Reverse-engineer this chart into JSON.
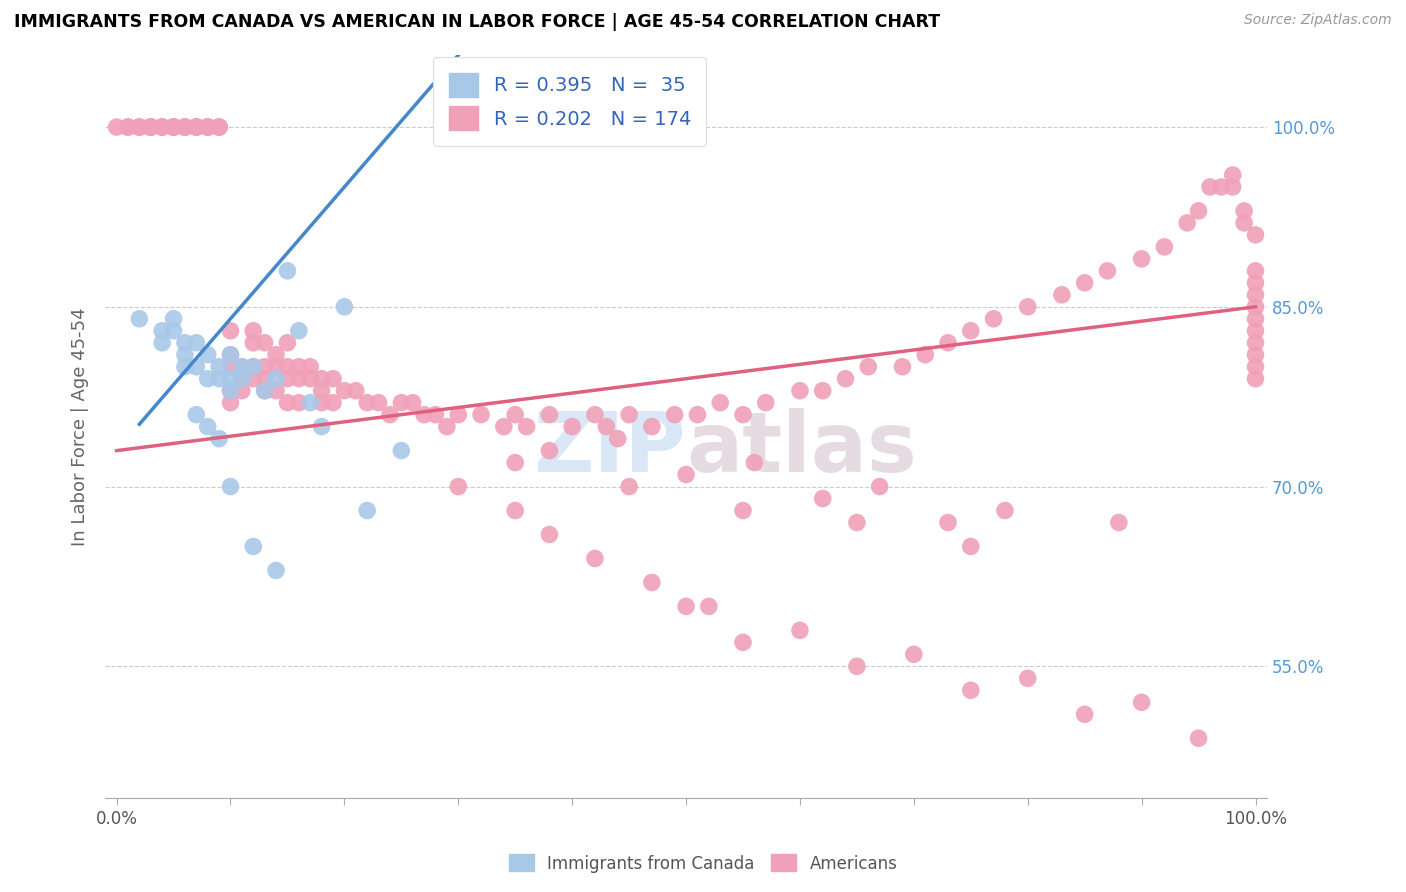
{
  "title": "IMMIGRANTS FROM CANADA VS AMERICAN IN LABOR FORCE | AGE 45-54 CORRELATION CHART",
  "source": "Source: ZipAtlas.com",
  "ylabel": "In Labor Force | Age 45-54",
  "blue_color": "#a8c8e8",
  "pink_color": "#f0a0b8",
  "line_blue": "#4488cc",
  "line_pink": "#e06080",
  "ytick_values": [
    0.55,
    0.7,
    0.85,
    1.0
  ],
  "ytick_labels": [
    "55.0%",
    "70.0%",
    "85.0%",
    "100.0%"
  ],
  "watermark_color": "#c0d8f0",
  "legend_label_color": "#3366bb",
  "right_tick_color": "#5599dd",
  "blue_x": [
    0.02,
    0.04,
    0.04,
    0.05,
    0.05,
    0.06,
    0.06,
    0.06,
    0.07,
    0.07,
    0.08,
    0.08,
    0.09,
    0.09,
    0.1,
    0.1,
    0.1,
    0.11,
    0.11,
    0.12,
    0.13,
    0.14,
    0.15,
    0.16,
    0.17,
    0.18,
    0.2,
    0.22,
    0.25,
    0.07,
    0.08,
    0.09,
    0.1,
    0.12,
    0.14
  ],
  "blue_y": [
    0.84,
    0.83,
    0.82,
    0.84,
    0.83,
    0.82,
    0.81,
    0.8,
    0.82,
    0.8,
    0.81,
    0.79,
    0.8,
    0.79,
    0.81,
    0.79,
    0.78,
    0.8,
    0.79,
    0.8,
    0.78,
    0.79,
    0.88,
    0.83,
    0.77,
    0.75,
    0.85,
    0.68,
    0.73,
    0.76,
    0.75,
    0.74,
    0.7,
    0.65,
    0.63
  ],
  "pink_x": [
    0.0,
    0.01,
    0.01,
    0.02,
    0.02,
    0.02,
    0.03,
    0.03,
    0.03,
    0.03,
    0.04,
    0.04,
    0.04,
    0.05,
    0.05,
    0.05,
    0.05,
    0.06,
    0.06,
    0.06,
    0.06,
    0.07,
    0.07,
    0.07,
    0.07,
    0.08,
    0.08,
    0.08,
    0.08,
    0.09,
    0.09,
    0.09,
    0.1,
    0.1,
    0.1,
    0.1,
    0.1,
    0.11,
    0.11,
    0.11,
    0.12,
    0.12,
    0.12,
    0.12,
    0.13,
    0.13,
    0.13,
    0.13,
    0.14,
    0.14,
    0.14,
    0.15,
    0.15,
    0.15,
    0.15,
    0.16,
    0.16,
    0.16,
    0.17,
    0.17,
    0.18,
    0.18,
    0.18,
    0.19,
    0.19,
    0.2,
    0.21,
    0.22,
    0.23,
    0.24,
    0.25,
    0.26,
    0.27,
    0.28,
    0.29,
    0.3,
    0.32,
    0.34,
    0.35,
    0.36,
    0.38,
    0.4,
    0.42,
    0.43,
    0.45,
    0.47,
    0.49,
    0.51,
    0.53,
    0.55,
    0.57,
    0.6,
    0.62,
    0.64,
    0.66,
    0.69,
    0.71,
    0.73,
    0.75,
    0.77,
    0.8,
    0.83,
    0.85,
    0.87,
    0.9,
    0.92,
    0.94,
    0.95,
    0.96,
    0.97,
    0.98,
    0.98,
    0.99,
    0.99,
    1.0,
    1.0,
    1.0,
    1.0,
    1.0,
    1.0,
    1.0,
    1.0,
    1.0,
    1.0,
    1.0,
    0.3,
    0.35,
    0.38,
    0.42,
    0.47,
    0.52,
    0.35,
    0.45,
    0.55,
    0.65,
    0.75,
    0.38,
    0.5,
    0.62,
    0.73,
    0.44,
    0.56,
    0.67,
    0.78,
    0.88,
    0.5,
    0.6,
    0.7,
    0.8,
    0.9,
    0.55,
    0.65,
    0.75,
    0.85,
    0.95
  ],
  "pink_y": [
    1.0,
    1.0,
    1.0,
    1.0,
    1.0,
    1.0,
    1.0,
    1.0,
    1.0,
    1.0,
    1.0,
    1.0,
    1.0,
    1.0,
    1.0,
    1.0,
    1.0,
    1.0,
    1.0,
    1.0,
    1.0,
    1.0,
    1.0,
    1.0,
    1.0,
    1.0,
    1.0,
    1.0,
    1.0,
    1.0,
    1.0,
    1.0,
    0.83,
    0.81,
    0.8,
    0.78,
    0.77,
    0.8,
    0.79,
    0.78,
    0.83,
    0.82,
    0.8,
    0.79,
    0.82,
    0.8,
    0.79,
    0.78,
    0.81,
    0.8,
    0.78,
    0.82,
    0.8,
    0.79,
    0.77,
    0.8,
    0.79,
    0.77,
    0.8,
    0.79,
    0.79,
    0.78,
    0.77,
    0.79,
    0.77,
    0.78,
    0.78,
    0.77,
    0.77,
    0.76,
    0.77,
    0.77,
    0.76,
    0.76,
    0.75,
    0.76,
    0.76,
    0.75,
    0.76,
    0.75,
    0.76,
    0.75,
    0.76,
    0.75,
    0.76,
    0.75,
    0.76,
    0.76,
    0.77,
    0.76,
    0.77,
    0.78,
    0.78,
    0.79,
    0.8,
    0.8,
    0.81,
    0.82,
    0.83,
    0.84,
    0.85,
    0.86,
    0.87,
    0.88,
    0.89,
    0.9,
    0.92,
    0.93,
    0.95,
    0.95,
    0.95,
    0.96,
    0.93,
    0.92,
    0.91,
    0.88,
    0.87,
    0.86,
    0.85,
    0.84,
    0.83,
    0.82,
    0.81,
    0.8,
    0.79,
    0.7,
    0.68,
    0.66,
    0.64,
    0.62,
    0.6,
    0.72,
    0.7,
    0.68,
    0.67,
    0.65,
    0.73,
    0.71,
    0.69,
    0.67,
    0.74,
    0.72,
    0.7,
    0.68,
    0.67,
    0.6,
    0.58,
    0.56,
    0.54,
    0.52,
    0.57,
    0.55,
    0.53,
    0.51,
    0.49
  ]
}
